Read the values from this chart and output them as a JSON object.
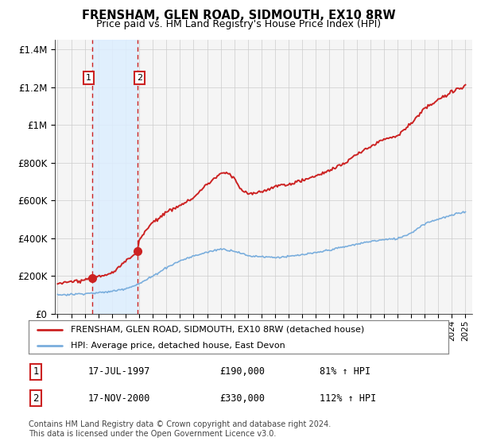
{
  "title": "FRENSHAM, GLEN ROAD, SIDMOUTH, EX10 8RW",
  "subtitle": "Price paid vs. HM Land Registry's House Price Index (HPI)",
  "legend_line1": "FRENSHAM, GLEN ROAD, SIDMOUTH, EX10 8RW (detached house)",
  "legend_line2": "HPI: Average price, detached house, East Devon",
  "table_rows": [
    {
      "num": 1,
      "date": "17-JUL-1997",
      "price": "£190,000",
      "pct": "81% ↑ HPI"
    },
    {
      "num": 2,
      "date": "17-NOV-2000",
      "price": "£330,000",
      "pct": "112% ↑ HPI"
    }
  ],
  "footnote": "Contains HM Land Registry data © Crown copyright and database right 2024.\nThis data is licensed under the Open Government Licence v3.0.",
  "sale1_year": 1997.54,
  "sale1_price": 190000,
  "sale2_year": 2000.88,
  "sale2_price": 330000,
  "hpi_color": "#7aaedd",
  "property_color": "#cc2222",
  "vline_color": "#cc2222",
  "shade_color": "#ddeeff",
  "chart_bg": "#f5f5f5",
  "grid_color": "#cccccc",
  "ylim": [
    0,
    1450000
  ],
  "xlim_start": 1994.8,
  "xlim_end": 2025.5,
  "yticks": [
    0,
    200000,
    400000,
    600000,
    800000,
    1000000,
    1200000,
    1400000
  ],
  "ylabels": [
    "£0",
    "£200K",
    "£400K",
    "£600K",
    "£800K",
    "£1M",
    "£1.2M",
    "£1.4M"
  ]
}
